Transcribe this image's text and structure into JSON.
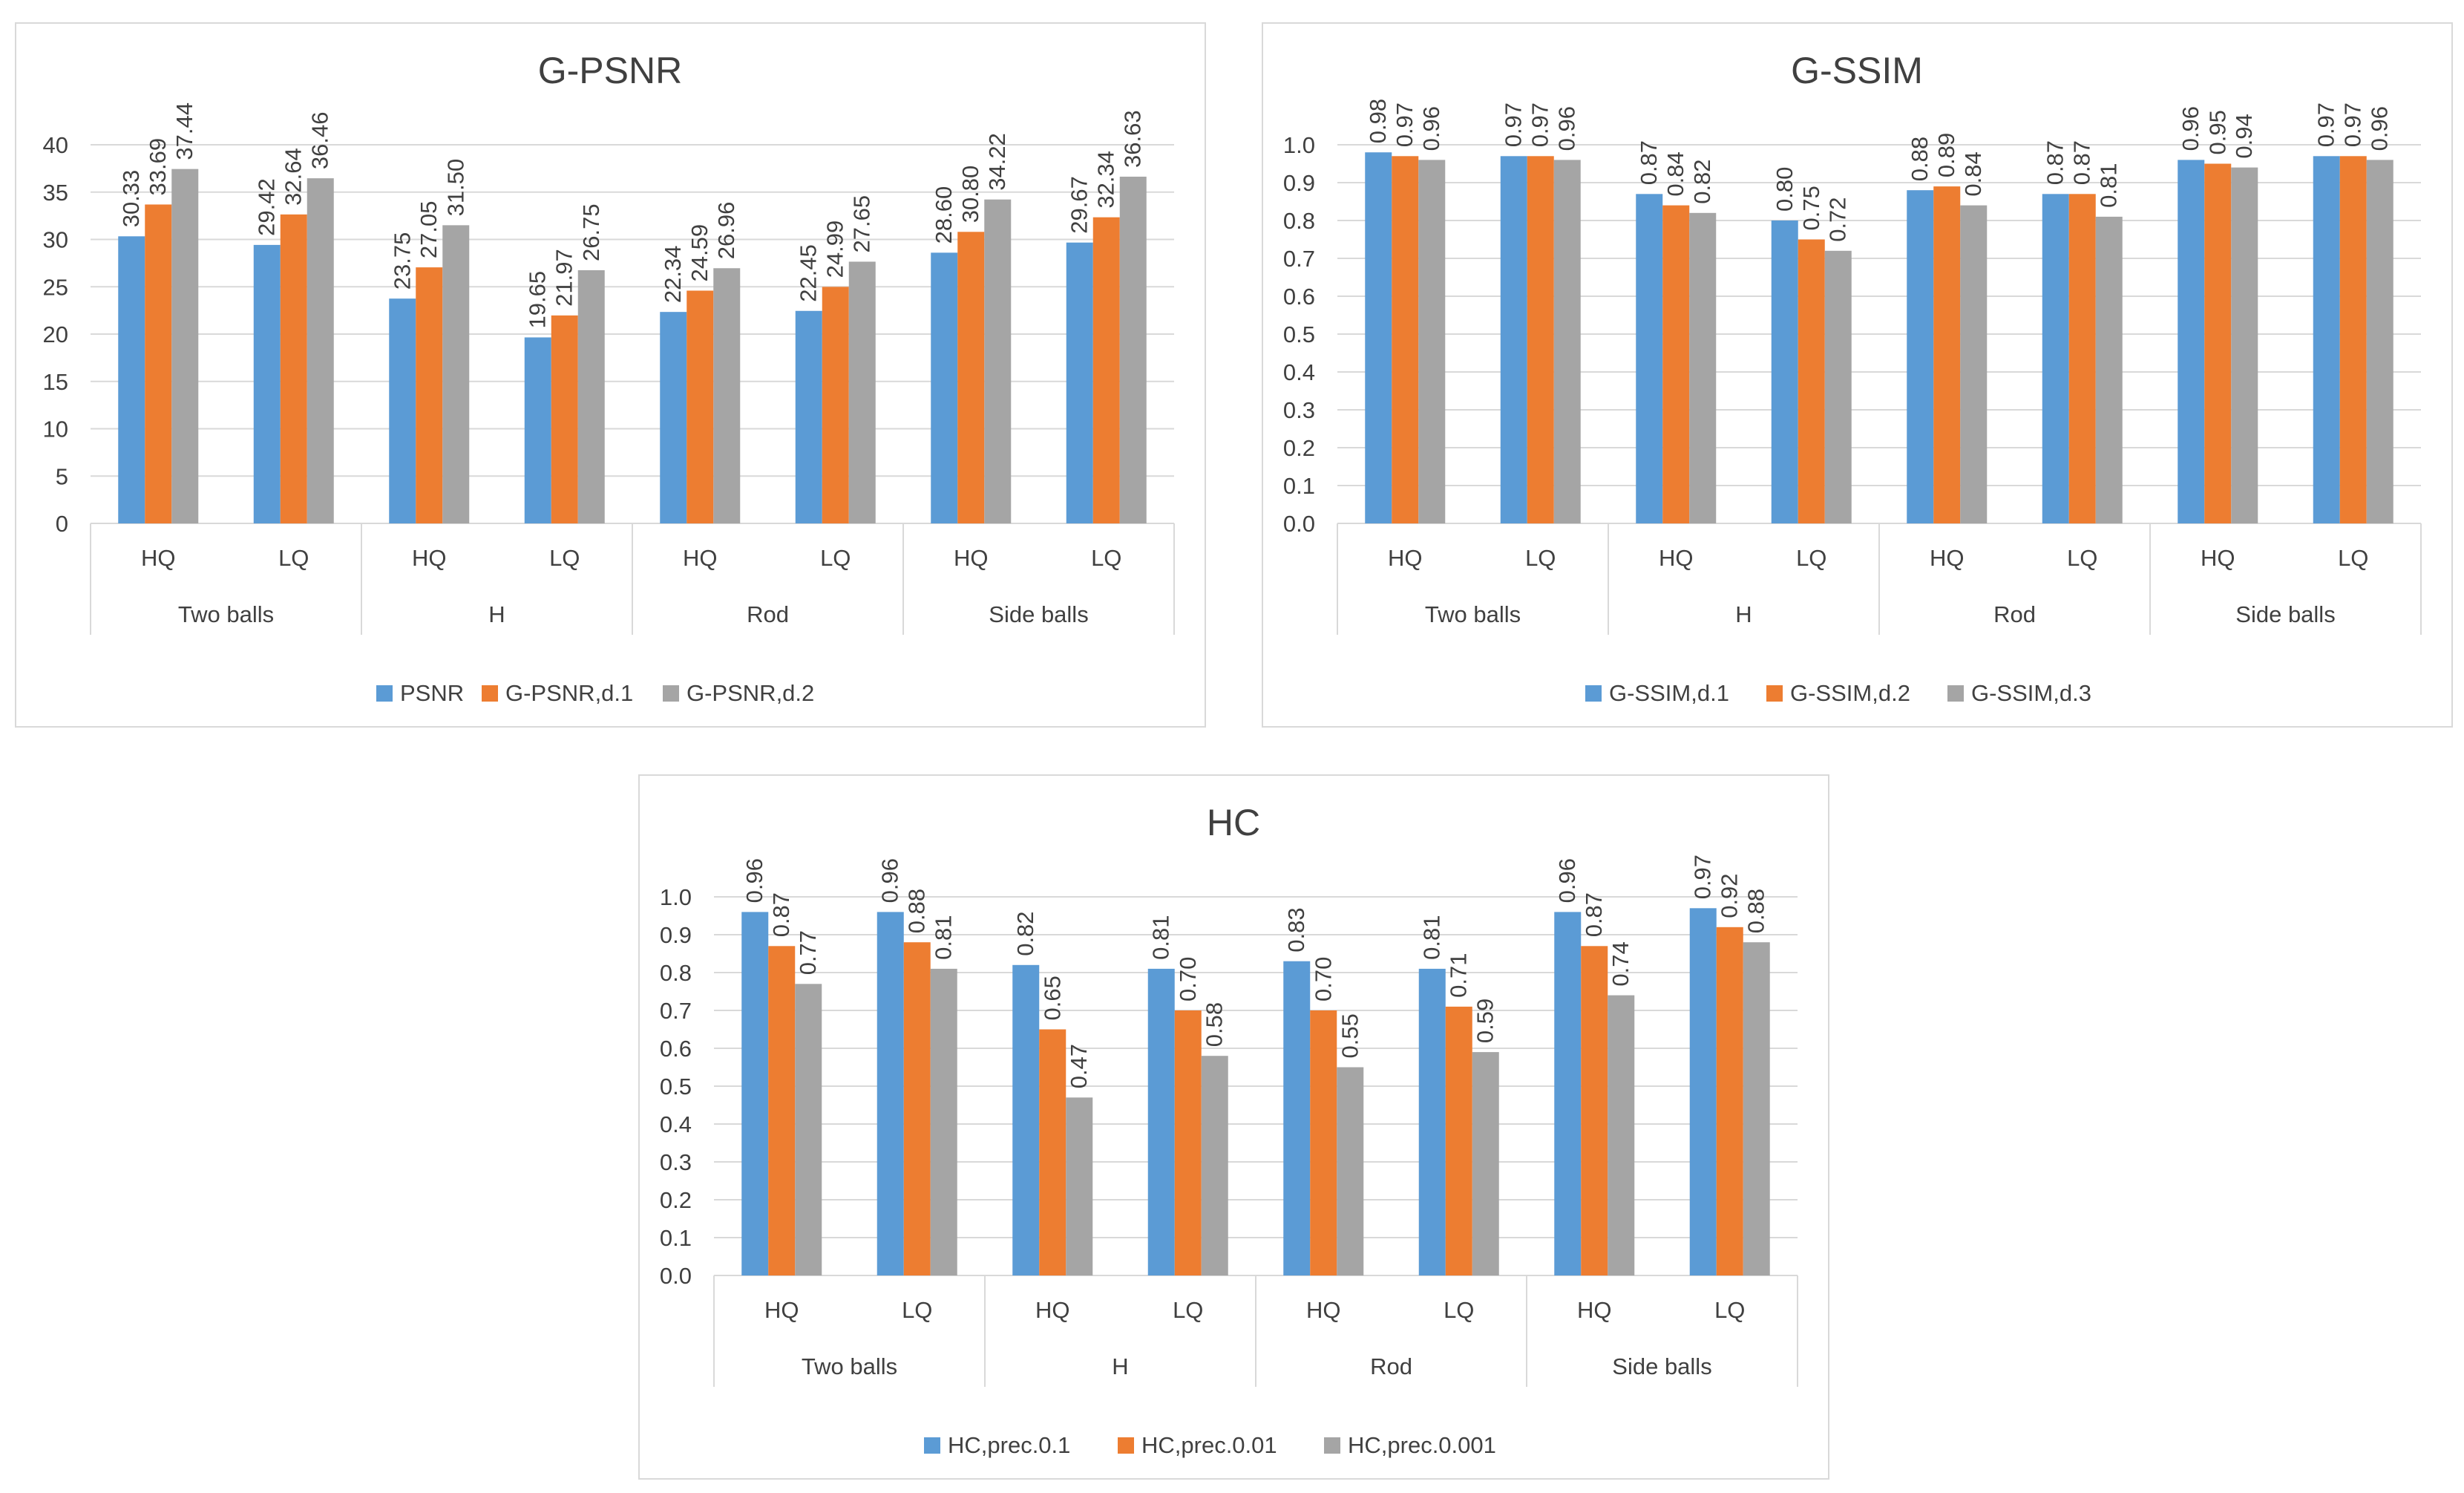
{
  "colors": {
    "series1": "#5b9bd5",
    "series2": "#ed7d31",
    "series3": "#a5a5a5",
    "grid": "#d9d9d9",
    "text": "#404040"
  },
  "chart_data": [
    {
      "type": "bar",
      "title": "G-PSNR",
      "groups": [
        "Two balls",
        "H",
        "Rod",
        "Side balls"
      ],
      "categories": [
        "HQ",
        "LQ",
        "HQ",
        "LQ",
        "HQ",
        "LQ",
        "HQ",
        "LQ"
      ],
      "ylim": [
        0,
        40
      ],
      "yticks": [
        "0",
        "5",
        "10",
        "15",
        "20",
        "25",
        "30",
        "35",
        "40"
      ],
      "series": [
        {
          "name": "PSNR",
          "values": [
            30.33,
            29.42,
            23.75,
            19.65,
            22.34,
            22.45,
            28.6,
            29.67
          ],
          "labels": [
            "30.33",
            "29.42",
            "23.75",
            "19.65",
            "22.34",
            "22.45",
            "28.60",
            "29.67"
          ]
        },
        {
          "name": "G-PSNR,d.1",
          "values": [
            33.69,
            32.64,
            27.05,
            21.97,
            24.59,
            24.99,
            30.8,
            32.34
          ],
          "labels": [
            "33.69",
            "32.64",
            "27.05",
            "21.97",
            "24.59",
            "24.99",
            "30.80",
            "32.34"
          ]
        },
        {
          "name": "G-PSNR,d.2",
          "values": [
            37.44,
            36.46,
            31.5,
            26.75,
            26.96,
            27.65,
            34.22,
            36.63
          ],
          "labels": [
            "37.44",
            "36.46",
            "31.50",
            "26.75",
            "26.96",
            "27.65",
            "34.22",
            "36.63"
          ]
        }
      ]
    },
    {
      "type": "bar",
      "title": "G-SSIM",
      "groups": [
        "Two balls",
        "H",
        "Rod",
        "Side balls"
      ],
      "categories": [
        "HQ",
        "LQ",
        "HQ",
        "LQ",
        "HQ",
        "LQ",
        "HQ",
        "LQ"
      ],
      "ylim": [
        0,
        1.0
      ],
      "yticks": [
        "0.0",
        "0.1",
        "0.2",
        "0.3",
        "0.4",
        "0.5",
        "0.6",
        "0.7",
        "0.8",
        "0.9",
        "1.0"
      ],
      "series": [
        {
          "name": "G-SSIM,d.1",
          "values": [
            0.98,
            0.97,
            0.87,
            0.8,
            0.88,
            0.87,
            0.96,
            0.97
          ],
          "labels": [
            "0.98",
            "0.97",
            "0.87",
            "0.80",
            "0.88",
            "0.87",
            "0.96",
            "0.97"
          ]
        },
        {
          "name": "G-SSIM,d.2",
          "values": [
            0.97,
            0.97,
            0.84,
            0.75,
            0.89,
            0.87,
            0.95,
            0.97
          ],
          "labels": [
            "0.97",
            "0.97",
            "0.84",
            "0.75",
            "0.89",
            "0.87",
            "0.95",
            "0.97"
          ]
        },
        {
          "name": "G-SSIM,d.3",
          "values": [
            0.96,
            0.96,
            0.82,
            0.72,
            0.84,
            0.81,
            0.94,
            0.96
          ],
          "labels": [
            "0.96",
            "0.96",
            "0.82",
            "0.72",
            "0.84",
            "0.81",
            "0.94",
            "0.96"
          ]
        }
      ]
    },
    {
      "type": "bar",
      "title": "HC",
      "groups": [
        "Two balls",
        "H",
        "Rod",
        "Side balls"
      ],
      "categories": [
        "HQ",
        "LQ",
        "HQ",
        "LQ",
        "HQ",
        "LQ",
        "HQ",
        "LQ"
      ],
      "ylim": [
        0,
        1.0
      ],
      "yticks": [
        "0.0",
        "0.1",
        "0.2",
        "0.3",
        "0.4",
        "0.5",
        "0.6",
        "0.7",
        "0.8",
        "0.9",
        "1.0"
      ],
      "series": [
        {
          "name": "HC,prec.0.1",
          "values": [
            0.96,
            0.96,
            0.82,
            0.81,
            0.83,
            0.81,
            0.96,
            0.97
          ],
          "labels": [
            "0.96",
            "0.96",
            "0.82",
            "0.81",
            "0.83",
            "0.81",
            "0.96",
            "0.97"
          ]
        },
        {
          "name": "HC,prec.0.01",
          "values": [
            0.87,
            0.88,
            0.65,
            0.7,
            0.7,
            0.71,
            0.87,
            0.92
          ],
          "labels": [
            "0.87",
            "0.88",
            "0.65",
            "0.70",
            "0.70",
            "0.71",
            "0.87",
            "0.92"
          ]
        },
        {
          "name": "HC,prec.0.001",
          "values": [
            0.77,
            0.81,
            0.47,
            0.58,
            0.55,
            0.59,
            0.74,
            0.88
          ],
          "labels": [
            "0.77",
            "0.81",
            "0.47",
            "0.58",
            "0.55",
            "0.59",
            "0.74",
            "0.88"
          ]
        }
      ]
    }
  ]
}
